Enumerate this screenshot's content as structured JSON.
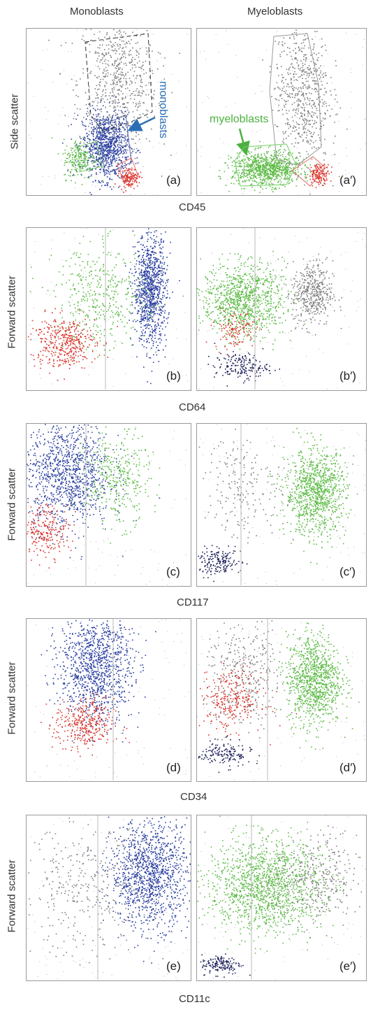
{
  "figure": {
    "column_titles": [
      "Monoblasts",
      "Myeloblasts"
    ],
    "x_axis_labels": [
      "CD45",
      "CD64",
      "CD117",
      "CD34",
      "CD11c"
    ],
    "y_axis_labels": [
      "Side scatter",
      "Forward scatter",
      "Forward scatter",
      "Forward scatter",
      "Forward scatter"
    ],
    "colors": {
      "monoblasts": "#2a3fa0",
      "myeloblasts": "#5dbb46",
      "red": "#d9332b",
      "gray": "#808080",
      "navy": "#1c1f5a"
    },
    "annotations": {
      "monoblasts": "monoblasts",
      "myeloblasts": "myeloblasts"
    }
  },
  "chart_data": [
    {
      "type": "scatter",
      "panel_label": "(a)",
      "xlabel": "CD45",
      "ylabel": "Side scatter",
      "population_clusters": [
        {
          "population": "gray",
          "x": 0.55,
          "y": 0.68,
          "spread": [
            0.12,
            0.22
          ],
          "count": 700
        },
        {
          "population": "monoblasts",
          "x": 0.48,
          "y": 0.3,
          "spread": [
            0.07,
            0.1
          ],
          "count": 900
        },
        {
          "population": "green",
          "x": 0.32,
          "y": 0.22,
          "spread": [
            0.05,
            0.06
          ],
          "count": 200
        },
        {
          "population": "red",
          "x": 0.62,
          "y": 0.11,
          "spread": [
            0.03,
            0.03
          ],
          "count": 150
        }
      ]
    },
    {
      "type": "scatter",
      "panel_label": "(a′)",
      "xlabel": "CD45",
      "ylabel": "Side scatter",
      "population_clusters": [
        {
          "population": "gray",
          "x": 0.62,
          "y": 0.62,
          "spread": [
            0.08,
            0.22
          ],
          "count": 650
        },
        {
          "population": "myeloblasts",
          "x": 0.41,
          "y": 0.16,
          "spread": [
            0.1,
            0.05
          ],
          "count": 900
        },
        {
          "population": "red",
          "x": 0.72,
          "y": 0.13,
          "spread": [
            0.03,
            0.03
          ],
          "count": 150
        }
      ]
    },
    {
      "type": "scatter",
      "panel_label": "(b)",
      "xlabel": "CD64",
      "ylabel": "Forward scatter",
      "population_clusters": [
        {
          "population": "monoblasts",
          "x": 0.75,
          "y": 0.62,
          "spread": [
            0.05,
            0.17
          ],
          "count": 950
        },
        {
          "population": "green",
          "x": 0.45,
          "y": 0.57,
          "spread": [
            0.14,
            0.16
          ],
          "count": 400
        },
        {
          "population": "red",
          "x": 0.22,
          "y": 0.3,
          "spread": [
            0.1,
            0.08
          ],
          "count": 400
        }
      ]
    },
    {
      "type": "scatter",
      "panel_label": "(b′)",
      "xlabel": "CD64",
      "ylabel": "Forward scatter",
      "population_clusters": [
        {
          "population": "myeloblasts",
          "x": 0.27,
          "y": 0.56,
          "spread": [
            0.12,
            0.11
          ],
          "count": 1000
        },
        {
          "population": "gray",
          "x": 0.68,
          "y": 0.6,
          "spread": [
            0.06,
            0.1
          ],
          "count": 450
        },
        {
          "population": "red",
          "x": 0.22,
          "y": 0.38,
          "spread": [
            0.06,
            0.06
          ],
          "count": 120
        },
        {
          "population": "navy",
          "x": 0.26,
          "y": 0.15,
          "spread": [
            0.08,
            0.04
          ],
          "count": 180
        }
      ]
    },
    {
      "type": "scatter",
      "panel_label": "(c)",
      "xlabel": "CD117",
      "ylabel": "Forward scatter",
      "population_clusters": [
        {
          "population": "monoblasts",
          "x": 0.25,
          "y": 0.7,
          "spread": [
            0.13,
            0.17
          ],
          "count": 1100
        },
        {
          "population": "green",
          "x": 0.55,
          "y": 0.66,
          "spread": [
            0.1,
            0.14
          ],
          "count": 350
        },
        {
          "population": "red",
          "x": 0.12,
          "y": 0.35,
          "spread": [
            0.07,
            0.08
          ],
          "count": 220
        }
      ]
    },
    {
      "type": "scatter",
      "panel_label": "(c′)",
      "xlabel": "CD117",
      "ylabel": "Forward scatter",
      "population_clusters": [
        {
          "population": "myeloblasts",
          "x": 0.7,
          "y": 0.58,
          "spread": [
            0.09,
            0.13
          ],
          "count": 1000
        },
        {
          "population": "gray",
          "x": 0.28,
          "y": 0.62,
          "spread": [
            0.12,
            0.16
          ],
          "count": 200
        },
        {
          "population": "navy",
          "x": 0.12,
          "y": 0.15,
          "spread": [
            0.07,
            0.04
          ],
          "count": 180
        }
      ]
    },
    {
      "type": "scatter",
      "panel_label": "(d)",
      "xlabel": "CD34",
      "ylabel": "Forward scatter",
      "population_clusters": [
        {
          "population": "monoblasts",
          "x": 0.42,
          "y": 0.72,
          "spread": [
            0.11,
            0.17
          ],
          "count": 1100
        },
        {
          "population": "red",
          "x": 0.35,
          "y": 0.35,
          "spread": [
            0.09,
            0.08
          ],
          "count": 350
        }
      ]
    },
    {
      "type": "scatter",
      "panel_label": "(d′)",
      "xlabel": "CD34",
      "ylabel": "Forward scatter",
      "population_clusters": [
        {
          "population": "myeloblasts",
          "x": 0.69,
          "y": 0.63,
          "spread": [
            0.08,
            0.14
          ],
          "count": 1000
        },
        {
          "population": "gray",
          "x": 0.28,
          "y": 0.66,
          "spread": [
            0.12,
            0.17
          ],
          "count": 350
        },
        {
          "population": "red",
          "x": 0.2,
          "y": 0.5,
          "spread": [
            0.09,
            0.09
          ],
          "count": 280
        },
        {
          "population": "navy",
          "x": 0.16,
          "y": 0.17,
          "spread": [
            0.08,
            0.04
          ],
          "count": 160
        }
      ]
    },
    {
      "type": "scatter",
      "panel_label": "(e)",
      "xlabel": "CD11c",
      "ylabel": "Forward scatter",
      "population_clusters": [
        {
          "population": "monoblasts",
          "x": 0.75,
          "y": 0.65,
          "spread": [
            0.12,
            0.16
          ],
          "count": 1200
        },
        {
          "population": "gray",
          "x": 0.35,
          "y": 0.55,
          "spread": [
            0.2,
            0.2
          ],
          "count": 350
        }
      ]
    },
    {
      "type": "scatter",
      "panel_label": "(e′)",
      "xlabel": "CD11c",
      "ylabel": "Forward scatter",
      "population_clusters": [
        {
          "population": "myeloblasts",
          "x": 0.4,
          "y": 0.58,
          "spread": [
            0.17,
            0.14
          ],
          "count": 1400
        },
        {
          "population": "gray",
          "x": 0.7,
          "y": 0.6,
          "spread": [
            0.12,
            0.14
          ],
          "count": 350
        },
        {
          "population": "navy",
          "x": 0.14,
          "y": 0.1,
          "spread": [
            0.06,
            0.03
          ],
          "count": 150
        }
      ]
    }
  ]
}
